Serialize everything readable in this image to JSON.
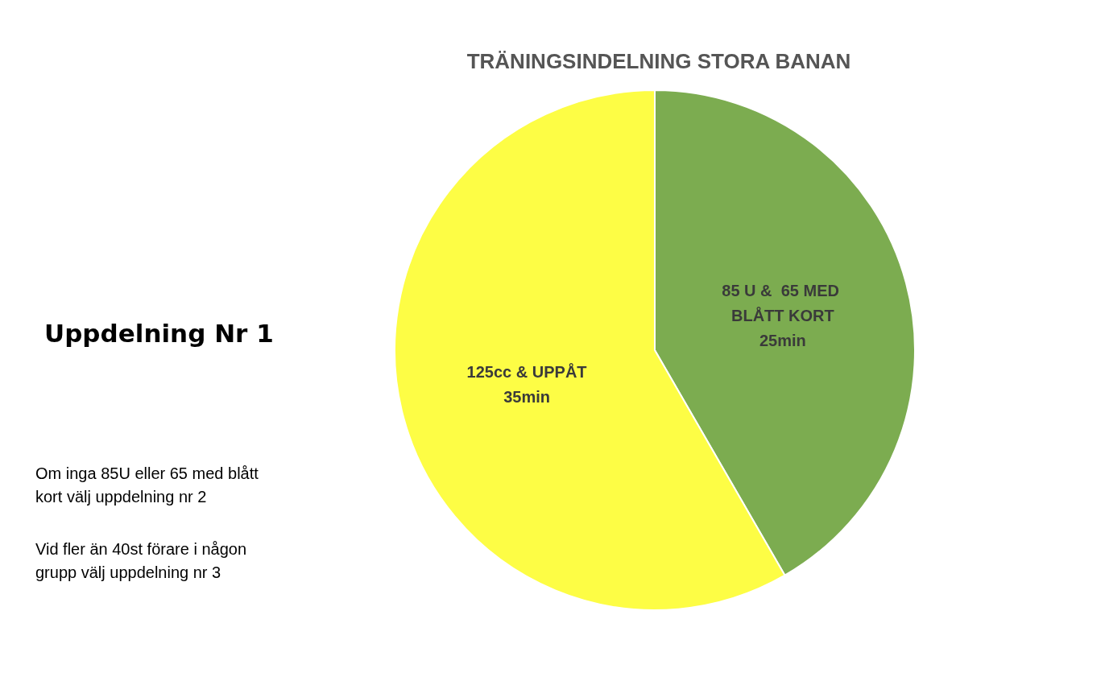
{
  "chart_data": {
    "type": "pie",
    "title": "TRÄNINGSINDELNING STORA BANAN",
    "subtitle": "Uppdelning Nr 1",
    "categories": [
      "85 U &  65 MED BLÅTT KORT",
      "125cc & UPPÅT"
    ],
    "values": [
      25,
      35
    ],
    "colors": [
      "#7cac50",
      "#fdfd45"
    ],
    "value_labels": [
      "25min",
      "35min"
    ],
    "annotations": [
      "Om inga 85U eller 65 med blått kort välj uppdelning nr 2",
      "Vid fler än 40st förare i någon grupp välj uppdelning nr 3"
    ],
    "legend": false
  }
}
